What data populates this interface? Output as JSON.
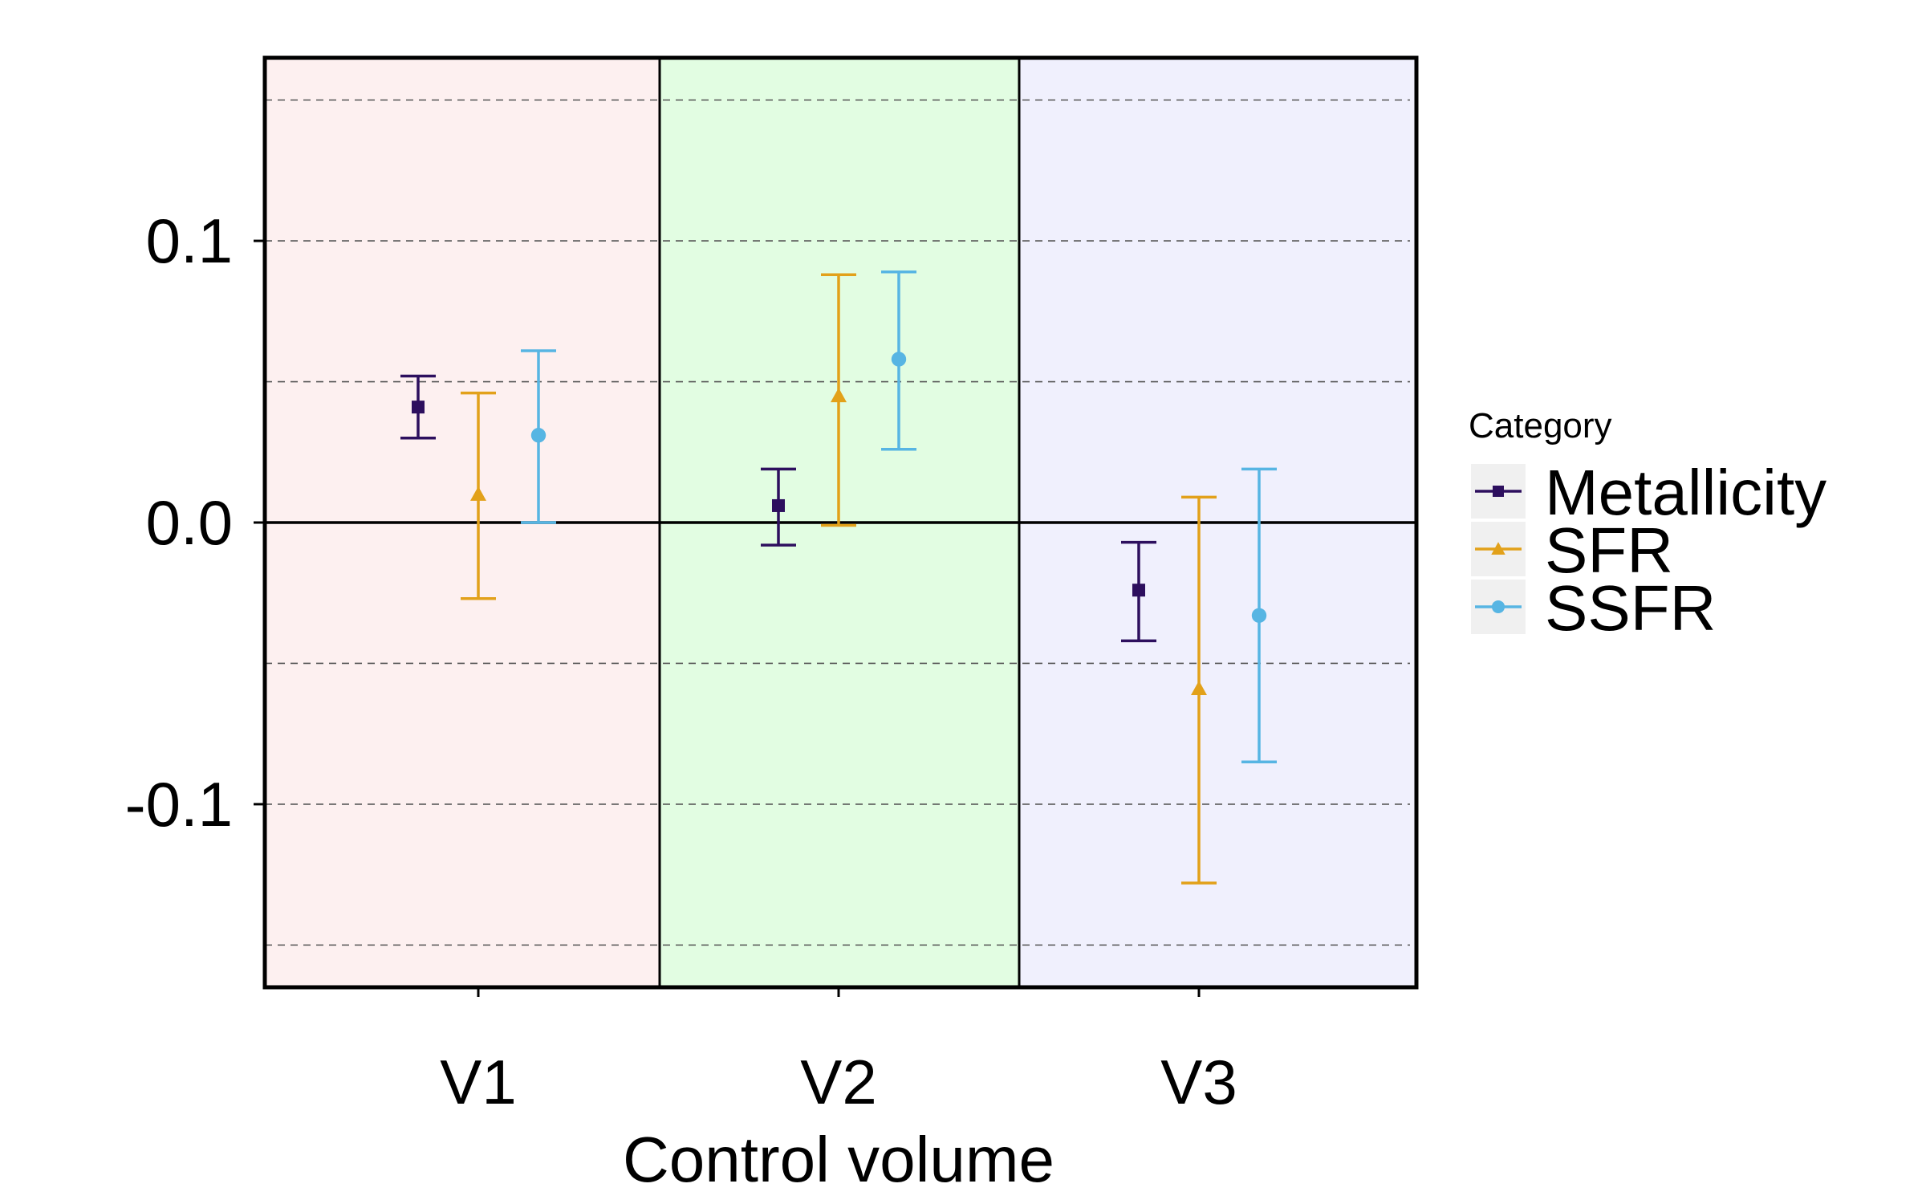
{
  "chart_data": {
    "type": "errorbar",
    "title": "",
    "xlabel": "Control volume",
    "ylabel": "",
    "categories": [
      "V1",
      "V2",
      "V3"
    ],
    "ylim": [
      -0.165,
      0.165
    ],
    "yticks": [
      -0.1,
      0.0,
      0.1
    ],
    "ytick_labels": [
      "-0.1",
      "0.0",
      "0.1"
    ],
    "grid": "dashed horizontal lines every 0.05",
    "zero_line": true,
    "panel_colors": [
      "#fdf0f0",
      "#e2fde2",
      "#f0f0fd"
    ],
    "legend": {
      "title": "Category",
      "position": "right"
    },
    "series": [
      {
        "name": "Metallicity",
        "marker": "square",
        "color": "#2d0f5e",
        "values": [
          0.041,
          0.006,
          -0.024
        ],
        "lower": [
          0.03,
          -0.008,
          -0.042
        ],
        "upper": [
          0.052,
          0.019,
          -0.007
        ]
      },
      {
        "name": "SFR",
        "marker": "triangle",
        "color": "#e2a11a",
        "values": [
          0.01,
          0.045,
          -0.059
        ],
        "lower": [
          -0.027,
          -0.001,
          -0.128
        ],
        "upper": [
          0.046,
          0.088,
          0.009
        ]
      },
      {
        "name": "SSFR",
        "marker": "circle",
        "color": "#57b5e3",
        "values": [
          0.031,
          0.058,
          -0.033
        ],
        "lower": [
          0.0,
          0.026,
          -0.085
        ],
        "upper": [
          0.061,
          0.089,
          0.019
        ]
      }
    ]
  }
}
